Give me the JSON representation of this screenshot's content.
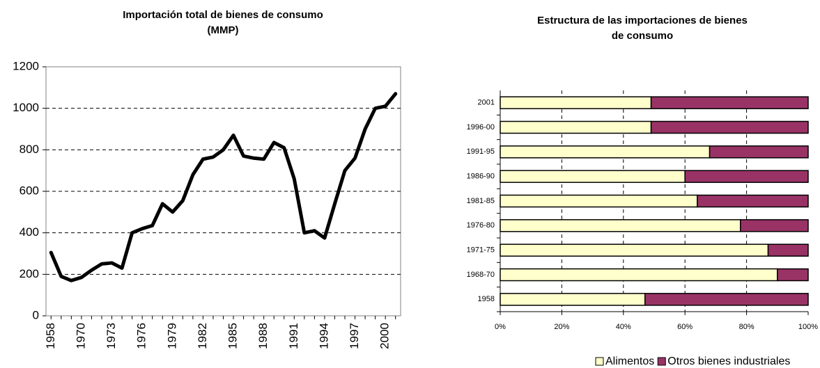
{
  "chart_data": [
    {
      "type": "line",
      "title": [
        "Importación total de bienes de consumo",
        "(MMP)"
      ],
      "categories": [
        "1958",
        null,
        null,
        "1970",
        null,
        null,
        "1973",
        null,
        null,
        "1976",
        null,
        null,
        "1979",
        null,
        null,
        "1982",
        null,
        null,
        "1985",
        null,
        null,
        "1988",
        null,
        null,
        "1991",
        null,
        null,
        "1994",
        null,
        null,
        "1997",
        null,
        null,
        "2000",
        null
      ],
      "values": [
        305,
        190,
        170,
        185,
        220,
        250,
        255,
        230,
        400,
        420,
        435,
        540,
        500,
        555,
        680,
        755,
        765,
        800,
        870,
        770,
        760,
        755,
        835,
        810,
        660,
        400,
        410,
        375,
        540,
        700,
        760,
        900,
        1000,
        1010,
        1070
      ],
      "color": "#000000",
      "ylim": [
        0,
        1200
      ],
      "yticks": [
        0,
        200,
        400,
        600,
        800,
        1000,
        1200
      ],
      "grid": true
    },
    {
      "type": "stacked-bar-horizontal",
      "title": [
        "Estructura de las importaciones de bienes",
        "de consumo"
      ],
      "categories": [
        "1958",
        "1968-70",
        "1971-75",
        "1976-80",
        "1981-85",
        "1986-90",
        "1991-95",
        "1996-00",
        "2001"
      ],
      "series": [
        {
          "name": "Alimentos",
          "color": "#ffffcc",
          "values": [
            47,
            90,
            87,
            78,
            64,
            60,
            68,
            49,
            49
          ]
        },
        {
          "name": "Otros bienes industriales",
          "color": "#993366",
          "values": [
            53,
            10,
            13,
            22,
            36,
            40,
            32,
            51,
            51
          ]
        }
      ],
      "xlim": [
        0,
        100
      ],
      "xticks": [
        {
          "value": 0,
          "label": "0%"
        },
        {
          "value": 20,
          "label": "20%"
        },
        {
          "value": 40,
          "label": "40%"
        },
        {
          "value": 60,
          "label": "60%"
        },
        {
          "value": 80,
          "label": "80%"
        },
        {
          "value": 100,
          "label": "100%"
        }
      ],
      "grid": true,
      "legend": "bottom"
    }
  ]
}
